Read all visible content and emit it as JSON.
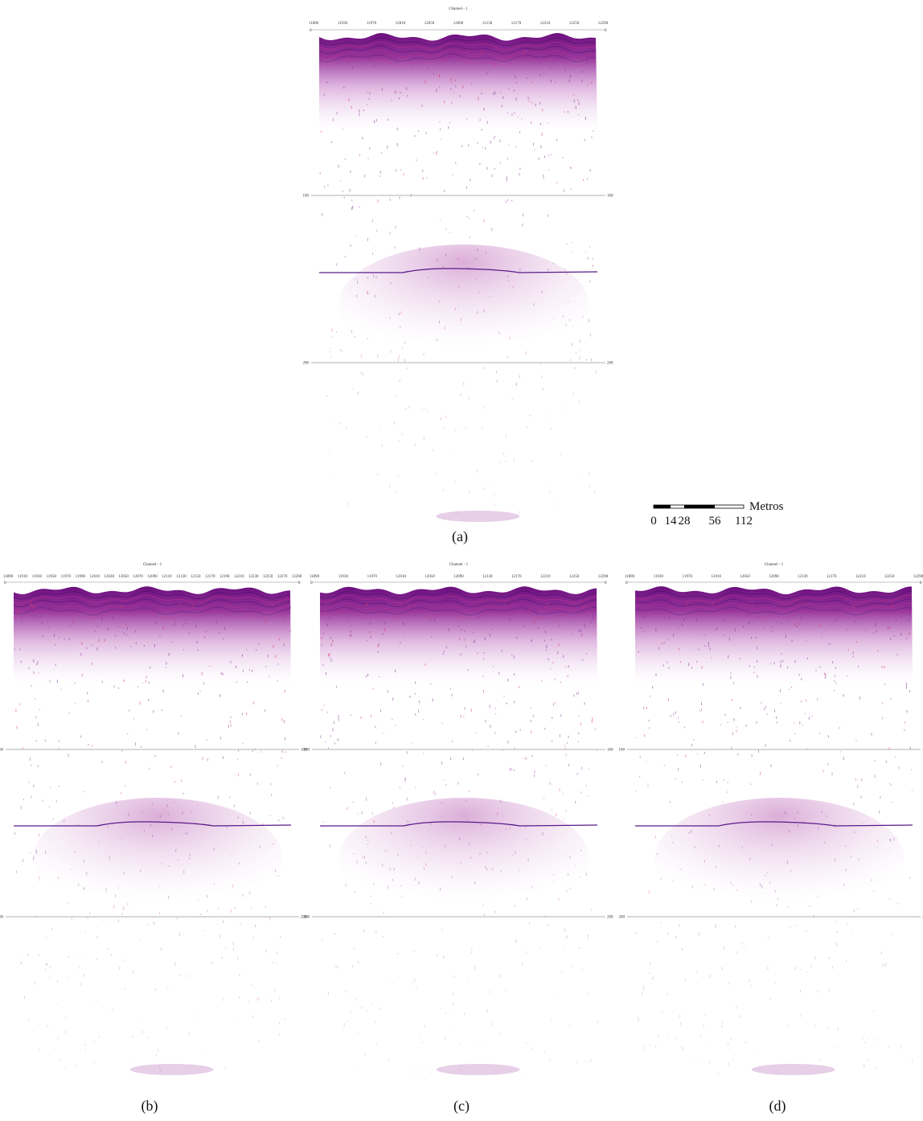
{
  "panels": [
    {
      "label": "(a)",
      "title": "Channel - 1",
      "axis_origin": "0",
      "top_ticks": [
        "11890",
        "11930",
        "11970",
        "12010",
        "12050",
        "12090",
        "12130",
        "12170",
        "12210",
        "12250",
        "12290"
      ],
      "depth_ticks": [
        "100",
        "200"
      ]
    },
    {
      "label": "(b)",
      "title": "Channel - 1",
      "axis_origin": "0",
      "top_ticks": [
        "11890",
        "11910",
        "11930",
        "11950",
        "11970",
        "11990",
        "12010",
        "12030",
        "12050",
        "12070",
        "12090",
        "12110",
        "12130",
        "12150",
        "12170",
        "12190",
        "12210",
        "12230",
        "12250",
        "12270",
        "12290"
      ],
      "depth_ticks": [
        "100",
        "200"
      ]
    },
    {
      "label": "(c)",
      "title": "Channel - 1",
      "axis_origin": "0",
      "top_ticks": [
        "11890",
        "11930",
        "11970",
        "12010",
        "12050",
        "12090",
        "12130",
        "12170",
        "12210",
        "12250",
        "12290"
      ],
      "depth_ticks": [
        "100",
        "200"
      ]
    },
    {
      "label": "(d)",
      "title": "Channel - 1",
      "axis_origin": "0",
      "top_ticks": [
        "11890",
        "11930",
        "11970",
        "12010",
        "12050",
        "12090",
        "12130",
        "12170",
        "12210",
        "12250",
        "12290"
      ],
      "depth_ticks": [
        "100",
        "200"
      ]
    }
  ],
  "scale_bar": {
    "unit": "Metros",
    "ticks": [
      "0",
      "14",
      "28",
      "56",
      "112"
    ]
  }
}
